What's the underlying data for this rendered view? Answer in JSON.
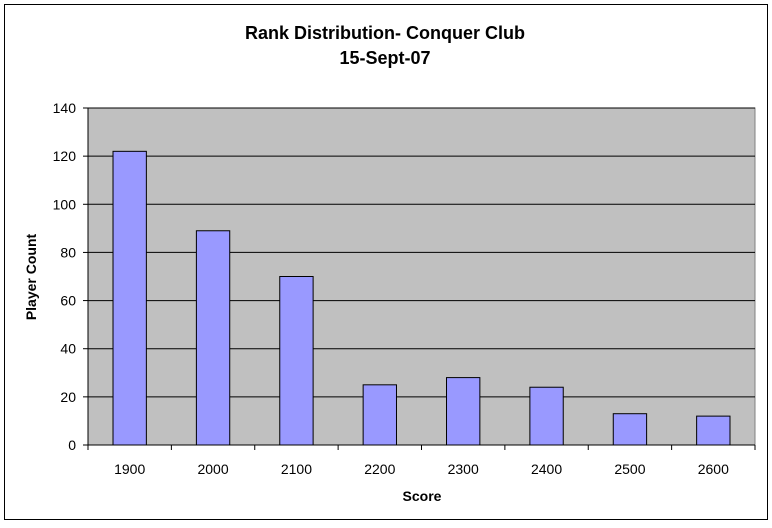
{
  "chart_data": {
    "type": "bar",
    "title": "Rank Distribution- Conquer Club",
    "subtitle": "15-Sept-07",
    "xlabel": "Score",
    "ylabel": "Player Count",
    "categories": [
      "1900",
      "2000",
      "2100",
      "2200",
      "2300",
      "2400",
      "2500",
      "2600"
    ],
    "values": [
      122,
      89,
      70,
      25,
      28,
      24,
      13,
      12
    ],
    "ylim": [
      0,
      140
    ],
    "yticks": [
      0,
      20,
      40,
      60,
      80,
      100,
      120,
      140
    ],
    "grid": true,
    "legend": "none",
    "colors": {
      "bar_fill": "#9999FF",
      "bar_stroke": "#000000",
      "plot_bg": "#C0C0C0",
      "grid": "#000000"
    }
  }
}
